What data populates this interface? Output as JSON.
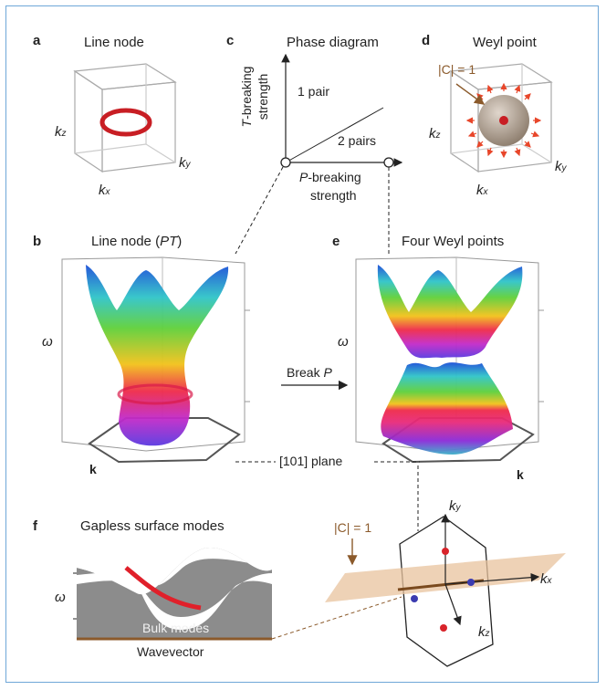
{
  "panels": {
    "a": {
      "letter": "a",
      "title": "Line node",
      "kz": "k",
      "kz_sub": "z",
      "ky": "k",
      "ky_sub": "y",
      "kx": "k",
      "kx_sub": "x"
    },
    "c": {
      "letter": "c",
      "title": "Phase diagram",
      "yaxis_1": "T",
      "yaxis_2": "-breaking",
      "yaxis_3": "strength",
      "xaxis_1": "P",
      "xaxis_2": "-breaking",
      "xaxis_3": "strength",
      "region_1": "1 pair",
      "region_2": "2 pairs"
    },
    "d": {
      "letter": "d",
      "title": "Weyl point",
      "charge": "|C| = 1",
      "kz": "k",
      "kz_sub": "z",
      "ky": "k",
      "ky_sub": "y",
      "kx": "k",
      "kx_sub": "x"
    },
    "b": {
      "letter": "b",
      "title_1": "Line node (",
      "title_2": "PT",
      "title_3": ")",
      "omega": "ω",
      "k": "k"
    },
    "e": {
      "letter": "e",
      "title": "Four Weyl points",
      "omega": "ω",
      "k": "k"
    },
    "arrow": {
      "label_1": "Break ",
      "label_2": "P"
    },
    "plane": {
      "label": "[101] plane"
    },
    "f": {
      "letter": "f",
      "title": "Gapless surface modes",
      "omega": "ω",
      "bulk": "Bulk modes",
      "xlabel": "Wavevector"
    },
    "bz": {
      "charge": "|C| = 1",
      "ky": "k",
      "ky_sub": "y",
      "kx": "k",
      "kx_sub": "x",
      "kz": "k",
      "kz_sub": "z"
    }
  },
  "colors": {
    "frame": "#6fa7d8",
    "ring": "#d8232a",
    "brown": "#8b5a2b",
    "plane": "#e8c39e",
    "surface_gray": "#8c8c8c",
    "red_point": "#d8232a",
    "blue_point": "#3b3bb0"
  }
}
